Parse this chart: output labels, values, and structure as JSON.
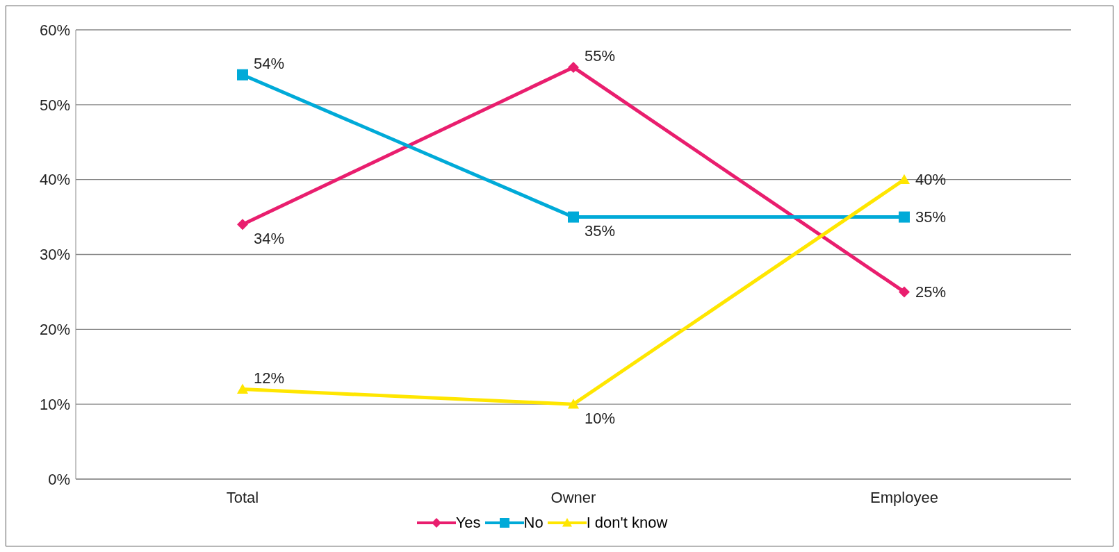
{
  "chart_data": {
    "type": "line",
    "categories": [
      "Total",
      "Owner",
      "Employee"
    ],
    "series": [
      {
        "name": "Yes",
        "color": "#e91e6e",
        "values": [
          34,
          55,
          25
        ],
        "marker": "diamond",
        "value_labels": [
          "34%",
          "55%",
          "25%"
        ]
      },
      {
        "name": "No",
        "color": "#00aad8",
        "values": [
          54,
          35,
          35
        ],
        "marker": "square",
        "value_labels": [
          "54%",
          "35%",
          "35%"
        ]
      },
      {
        "name": "I don't know",
        "color": "#ffe600",
        "values": [
          12,
          10,
          40
        ],
        "marker": "triangle",
        "value_labels": [
          "12%",
          "10%",
          "40%"
        ]
      }
    ],
    "ylim": [
      0,
      60
    ],
    "yticks": [
      {
        "value": 0,
        "label": "0%"
      },
      {
        "value": 10,
        "label": "10%"
      },
      {
        "value": 20,
        "label": "20%"
      },
      {
        "value": 30,
        "label": "30%"
      },
      {
        "value": 40,
        "label": "40%"
      },
      {
        "value": 50,
        "label": "50%"
      },
      {
        "value": 60,
        "label": "60%"
      }
    ],
    "grid": "y",
    "legend": "bottom",
    "line_style": "solid"
  }
}
